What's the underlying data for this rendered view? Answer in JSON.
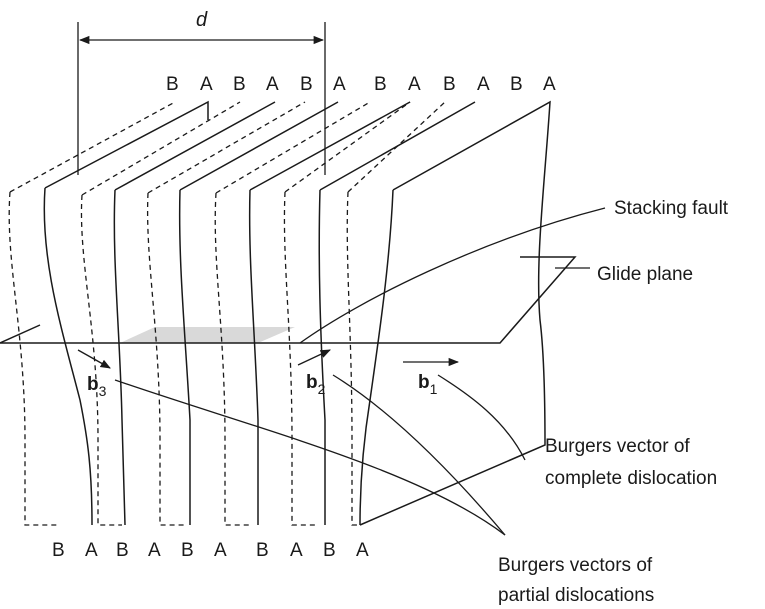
{
  "spacing_label": "d",
  "top_stacking": [
    "B",
    "A",
    "B",
    "A",
    "B",
    "A",
    "B",
    "A",
    "B",
    "A",
    "B",
    "A"
  ],
  "bottom_stacking": [
    "B",
    "A",
    "B",
    "A",
    "B",
    "A",
    "B",
    "A",
    "B",
    "A"
  ],
  "labels": {
    "stacking_fault": "Stacking fault",
    "glide_plane": "Glide plane",
    "complete_line1": "Burgers vector of",
    "complete_line2": "complete dislocation",
    "partial_line1": "Burgers vectors of",
    "partial_line2": "partial dislocations"
  },
  "vectors": {
    "b1": {
      "symbol": "b",
      "subscript": "1"
    },
    "b2": {
      "symbol": "b",
      "subscript": "2"
    },
    "b3": {
      "symbol": "b",
      "subscript": "3"
    }
  }
}
